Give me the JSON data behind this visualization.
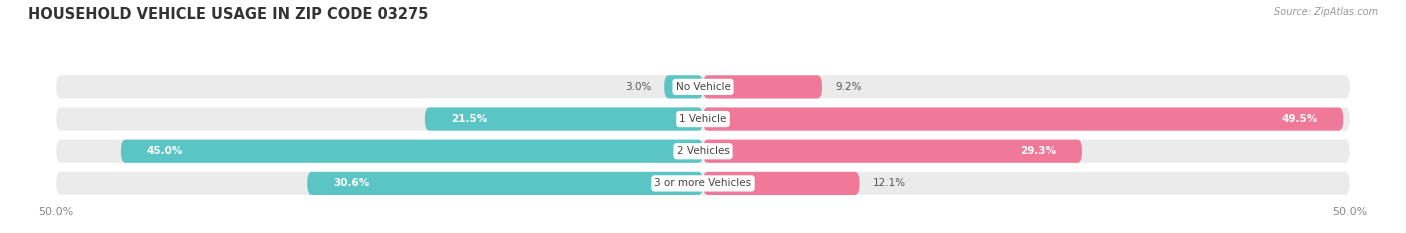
{
  "title": "HOUSEHOLD VEHICLE USAGE IN ZIP CODE 03275",
  "source": "Source: ZipAtlas.com",
  "categories": [
    "No Vehicle",
    "1 Vehicle",
    "2 Vehicles",
    "3 or more Vehicles"
  ],
  "owner_values": [
    3.0,
    21.5,
    45.0,
    30.6
  ],
  "renter_values": [
    9.2,
    49.5,
    29.3,
    12.1
  ],
  "owner_color": "#5bc5c5",
  "renter_color": "#f07899",
  "bg_bar_color": "#ebebeb",
  "axis_min": -50.0,
  "axis_max": 50.0,
  "title_fontsize": 10.5,
  "label_fontsize": 7.5,
  "tick_fontsize": 8,
  "legend_fontsize": 8,
  "bar_height": 0.72,
  "background_color": "#ffffff"
}
